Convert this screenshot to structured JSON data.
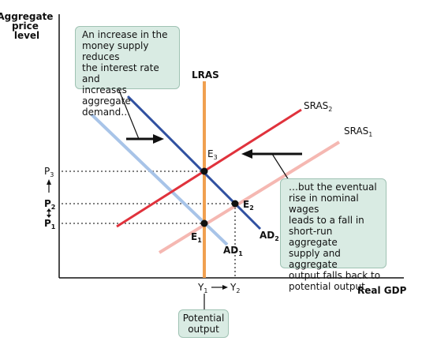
{
  "axes": {
    "y_label_lines": [
      "Aggregate",
      "price",
      "level"
    ],
    "x_label": "Real GDP"
  },
  "curves": {
    "lras": "LRAS",
    "sras2_base": "SRAS",
    "sras2_sub": "2",
    "sras1_base": "SRAS",
    "sras1_sub": "1",
    "ad2_base": "AD",
    "ad2_sub": "2",
    "ad1_base": "AD",
    "ad1_sub": "1"
  },
  "points": {
    "e1_base": "E",
    "e1_sub": "1",
    "e2_base": "E",
    "e2_sub": "2",
    "e3_base": "E",
    "e3_sub": "3"
  },
  "price_levels": {
    "p1_base": "P",
    "p1_sub": "1",
    "p2_base": "P",
    "p2_sub": "2",
    "p3_base": "P",
    "p3_sub": "3"
  },
  "output_levels": {
    "y1_base": "Y",
    "y1_sub": "1",
    "y2_base": "Y",
    "y2_sub": "2"
  },
  "annotations": {
    "box_left_lines": [
      "An increase in the",
      "money supply reduces",
      "the interest rate and",
      "increases aggregate",
      "demand…"
    ],
    "box_right_lines": [
      "…but the eventual",
      "rise in nominal wages",
      "leads to a fall in",
      "short-run aggregate",
      "supply and aggregate",
      "output falls back to",
      "potential output."
    ],
    "box_bottom_lines": [
      "Potential",
      "output"
    ]
  },
  "colors": {
    "lras": "#f0a050",
    "sras2": "#e0323c",
    "sras1": "#f5b8b2",
    "ad2": "#3050a0",
    "ad1": "#a8c4e8",
    "box_fill": "#d9ebe3"
  }
}
